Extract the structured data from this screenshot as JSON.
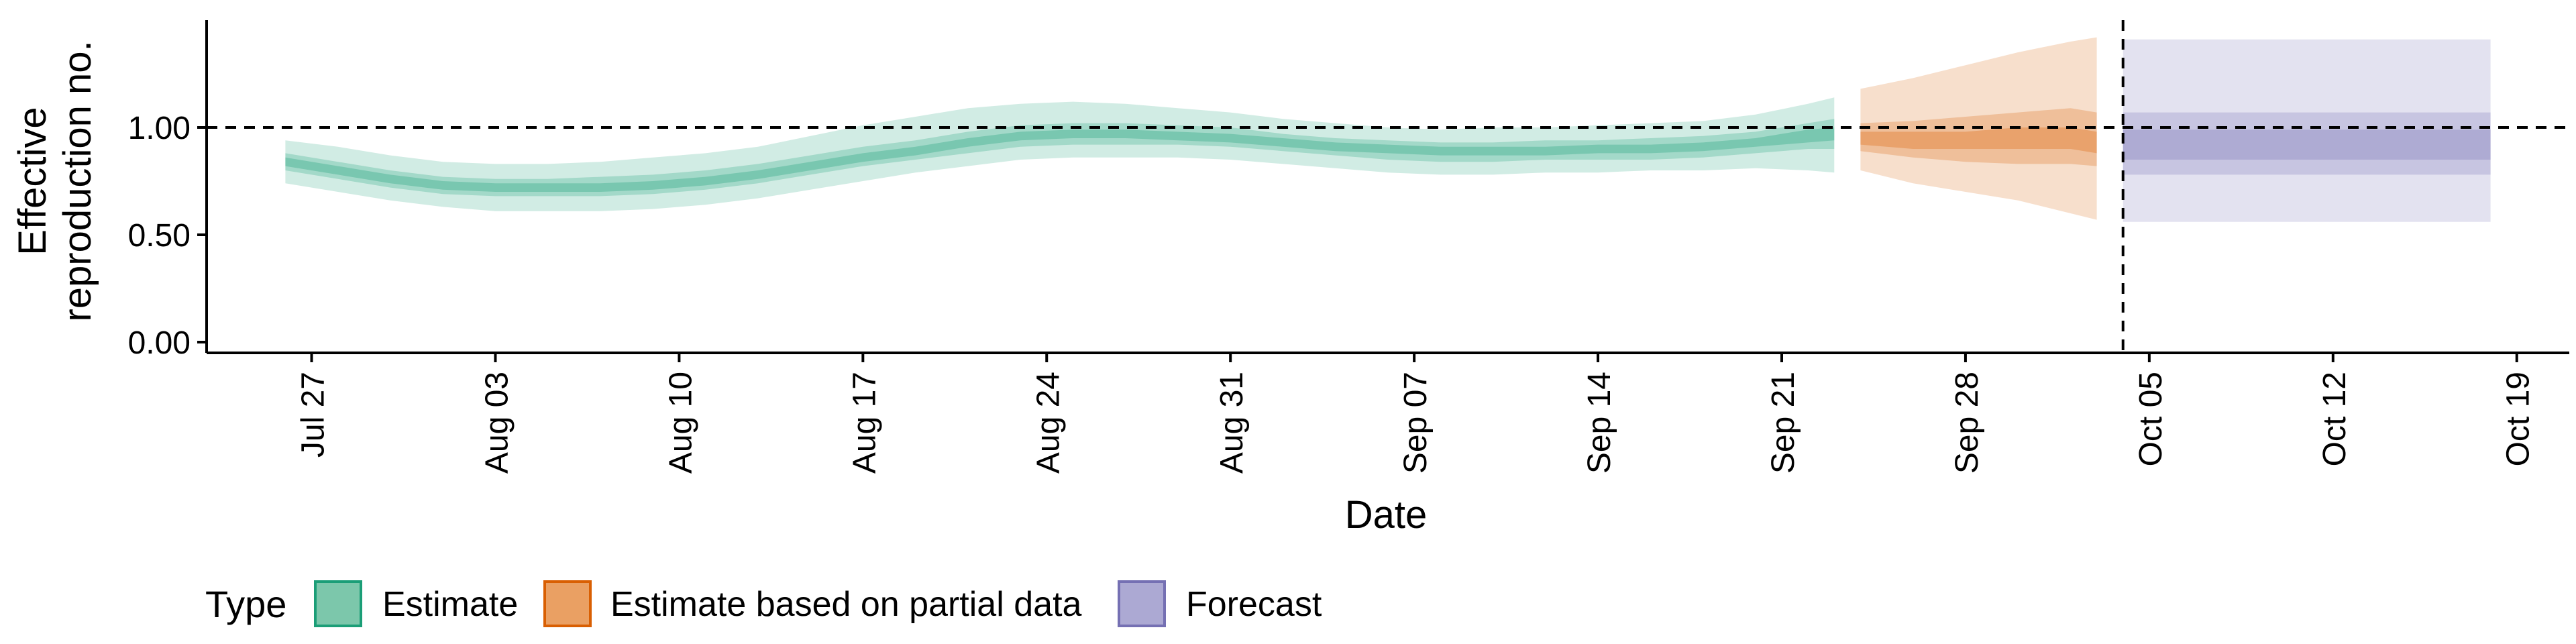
{
  "chart_data": {
    "type": "area",
    "title": "",
    "xlabel": "Date",
    "ylabel_lines": [
      "Effective",
      "reproduction no."
    ],
    "xlim": [
      "2020-07-23",
      "2020-10-21"
    ],
    "ylim": [
      -0.05,
      1.5
    ],
    "grid": false,
    "x_ticks": [
      "2020-07-27",
      "2020-08-03",
      "2020-08-10",
      "2020-08-17",
      "2020-08-24",
      "2020-08-31",
      "2020-09-07",
      "2020-09-14",
      "2020-09-21",
      "2020-09-28",
      "2020-10-05",
      "2020-10-12",
      "2020-10-19"
    ],
    "x_tick_labels": [
      "Jul 27",
      "Aug 03",
      "Aug 10",
      "Aug 17",
      "Aug 24",
      "Aug 31",
      "Sep 07",
      "Sep 14",
      "Sep 21",
      "Sep 28",
      "Oct 05",
      "Oct 12",
      "Oct 19"
    ],
    "y_ticks": [
      0,
      0.5,
      1.0
    ],
    "y_tick_labels": [
      "0.00",
      "0.50",
      "1.00"
    ],
    "reference_lines": {
      "horizontal_y": 1.0,
      "vertical_x": "2020-10-04"
    },
    "legend": {
      "title": "Type",
      "position": "bottom-left",
      "entries": [
        "Estimate",
        "Estimate based on partial data",
        "Forecast"
      ]
    },
    "series": [
      {
        "name": "Estimate",
        "color": "#1b9e77",
        "x": [
          "2020-07-26",
          "2020-07-28",
          "2020-07-30",
          "2020-08-01",
          "2020-08-03",
          "2020-08-05",
          "2020-08-07",
          "2020-08-09",
          "2020-08-11",
          "2020-08-13",
          "2020-08-15",
          "2020-08-17",
          "2020-08-19",
          "2020-08-21",
          "2020-08-23",
          "2020-08-25",
          "2020-08-27",
          "2020-08-29",
          "2020-08-31",
          "2020-09-02",
          "2020-09-04",
          "2020-09-06",
          "2020-09-08",
          "2020-09-10",
          "2020-09-12",
          "2020-09-14",
          "2020-09-16",
          "2020-09-18",
          "2020-09-20",
          "2020-09-22",
          "2020-09-23"
        ],
        "median": [
          0.84,
          0.8,
          0.76,
          0.73,
          0.72,
          0.72,
          0.72,
          0.73,
          0.75,
          0.78,
          0.82,
          0.86,
          0.89,
          0.93,
          0.96,
          0.97,
          0.97,
          0.96,
          0.95,
          0.93,
          0.91,
          0.9,
          0.89,
          0.89,
          0.89,
          0.9,
          0.9,
          0.91,
          0.93,
          0.96,
          0.97
        ],
        "lower_90": [
          0.74,
          0.7,
          0.66,
          0.63,
          0.61,
          0.61,
          0.61,
          0.62,
          0.64,
          0.67,
          0.71,
          0.75,
          0.79,
          0.82,
          0.85,
          0.86,
          0.86,
          0.86,
          0.85,
          0.83,
          0.81,
          0.79,
          0.78,
          0.78,
          0.79,
          0.79,
          0.8,
          0.8,
          0.81,
          0.8,
          0.79
        ],
        "upper_90": [
          0.94,
          0.91,
          0.87,
          0.84,
          0.83,
          0.83,
          0.84,
          0.86,
          0.88,
          0.91,
          0.96,
          1.01,
          1.05,
          1.09,
          1.11,
          1.12,
          1.11,
          1.09,
          1.07,
          1.04,
          1.02,
          1.0,
          0.99,
          1.0,
          1.0,
          1.01,
          1.02,
          1.03,
          1.06,
          1.11,
          1.14
        ],
        "lower_50": [
          0.8,
          0.76,
          0.72,
          0.69,
          0.68,
          0.68,
          0.68,
          0.69,
          0.71,
          0.74,
          0.78,
          0.82,
          0.85,
          0.88,
          0.91,
          0.92,
          0.92,
          0.92,
          0.91,
          0.89,
          0.87,
          0.85,
          0.84,
          0.84,
          0.85,
          0.85,
          0.85,
          0.86,
          0.88,
          0.9,
          0.9
        ],
        "upper_50": [
          0.88,
          0.84,
          0.8,
          0.77,
          0.76,
          0.76,
          0.77,
          0.78,
          0.8,
          0.83,
          0.87,
          0.91,
          0.94,
          0.98,
          1.01,
          1.02,
          1.02,
          1.01,
          1.0,
          0.97,
          0.95,
          0.94,
          0.93,
          0.93,
          0.94,
          0.94,
          0.95,
          0.96,
          0.98,
          1.02,
          1.04
        ],
        "lower_20": [
          0.82,
          0.78,
          0.74,
          0.71,
          0.7,
          0.7,
          0.7,
          0.71,
          0.73,
          0.76,
          0.8,
          0.84,
          0.87,
          0.91,
          0.94,
          0.95,
          0.95,
          0.94,
          0.93,
          0.91,
          0.89,
          0.88,
          0.87,
          0.87,
          0.87,
          0.88,
          0.88,
          0.89,
          0.91,
          0.93,
          0.94
        ],
        "upper_20": [
          0.86,
          0.82,
          0.78,
          0.75,
          0.74,
          0.74,
          0.74,
          0.75,
          0.77,
          0.8,
          0.84,
          0.88,
          0.91,
          0.95,
          0.98,
          0.99,
          0.99,
          0.98,
          0.97,
          0.95,
          0.93,
          0.92,
          0.91,
          0.91,
          0.91,
          0.92,
          0.92,
          0.93,
          0.95,
          0.99,
          1.0
        ]
      },
      {
        "name": "Estimate based on partial data",
        "color": "#d95f02",
        "x": [
          "2020-09-24",
          "2020-09-26",
          "2020-09-28",
          "2020-09-30",
          "2020-10-02",
          "2020-10-03"
        ],
        "median": [
          0.95,
          0.94,
          0.94,
          0.95,
          0.95,
          0.93
        ],
        "lower_90": [
          0.8,
          0.74,
          0.7,
          0.66,
          0.6,
          0.57
        ],
        "upper_90": [
          1.18,
          1.23,
          1.29,
          1.35,
          1.4,
          1.42
        ],
        "lower_50": [
          0.89,
          0.86,
          0.84,
          0.83,
          0.83,
          0.82
        ],
        "upper_50": [
          1.02,
          1.03,
          1.05,
          1.07,
          1.09,
          1.07
        ],
        "lower_20": [
          0.92,
          0.9,
          0.9,
          0.9,
          0.9,
          0.88
        ],
        "upper_20": [
          0.98,
          0.98,
          0.98,
          1.0,
          1.0,
          0.98
        ]
      },
      {
        "name": "Forecast",
        "color": "#7570b3",
        "x": [
          "2020-10-04",
          "2020-10-18"
        ],
        "median": [
          0.95,
          0.95
        ],
        "lower_90": [
          0.56,
          0.56
        ],
        "upper_90": [
          1.41,
          1.41
        ],
        "lower_50": [
          0.78,
          0.78
        ],
        "upper_50": [
          1.07,
          1.07
        ],
        "lower_20": [
          0.85,
          0.85
        ],
        "upper_20": [
          0.99,
          0.99
        ]
      }
    ]
  }
}
